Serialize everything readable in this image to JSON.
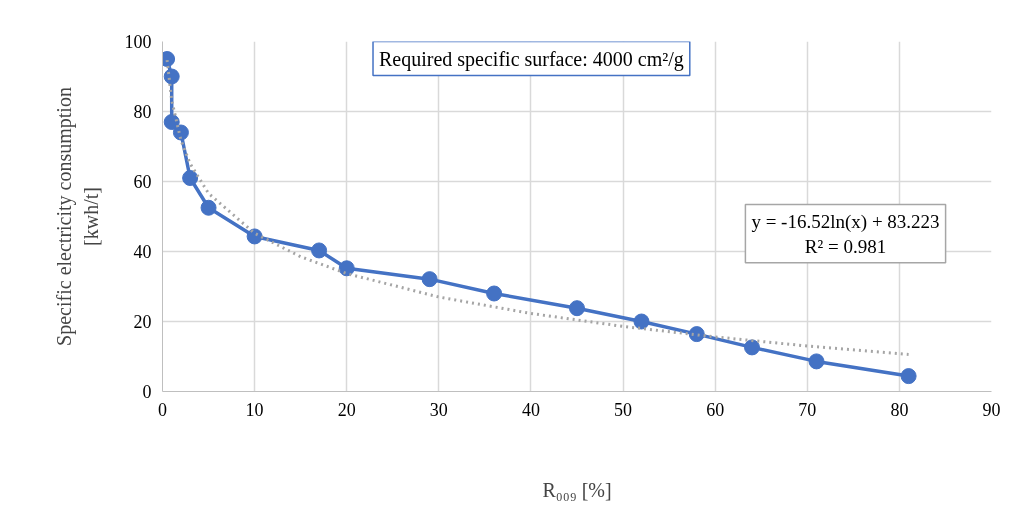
{
  "chart_data": {
    "type": "line",
    "title": "Required specific surface: 4000 cm²/g",
    "xlabel": "R₀₀₉ [%]",
    "ylabel": "Specific electricity consumption\n[kwh/t]",
    "annotations": [
      "y = -16.52ln(x) + 83.223\nR² = 0.981"
    ],
    "series": [
      {
        "color": "#4472c4",
        "marker": "circle",
        "line_style": "solid",
        "x": [
          0.5,
          1,
          1,
          2,
          3,
          5,
          10,
          17,
          20,
          29,
          36,
          45,
          52,
          58,
          64,
          71,
          81
        ],
        "values": [
          95,
          90,
          77,
          74,
          61,
          52.5,
          44.3,
          40.3,
          35.2,
          32.1,
          28,
          23.8,
          20,
          16.4,
          12.6,
          8.6,
          4.4
        ]
      },
      {
        "color": "#a5a5a5",
        "marker": "none",
        "line_style": "dotted",
        "x": [
          0.5,
          1,
          2,
          3,
          5,
          10,
          15,
          20,
          30,
          40,
          50,
          60,
          70,
          81
        ],
        "values": [
          94.7,
          83.2,
          71.8,
          65.1,
          56.6,
          45.2,
          38.5,
          33.7,
          27.0,
          22.3,
          18.6,
          15.6,
          13.0,
          10.6
        ]
      }
    ],
    "xlim": [
      0,
      90
    ],
    "ylim": [
      0,
      100
    ],
    "xticks": [
      0,
      10,
      20,
      30,
      40,
      50,
      60,
      70,
      80,
      90
    ],
    "yticks": [
      0,
      20,
      40,
      60,
      80,
      100
    ],
    "grid": true
  }
}
